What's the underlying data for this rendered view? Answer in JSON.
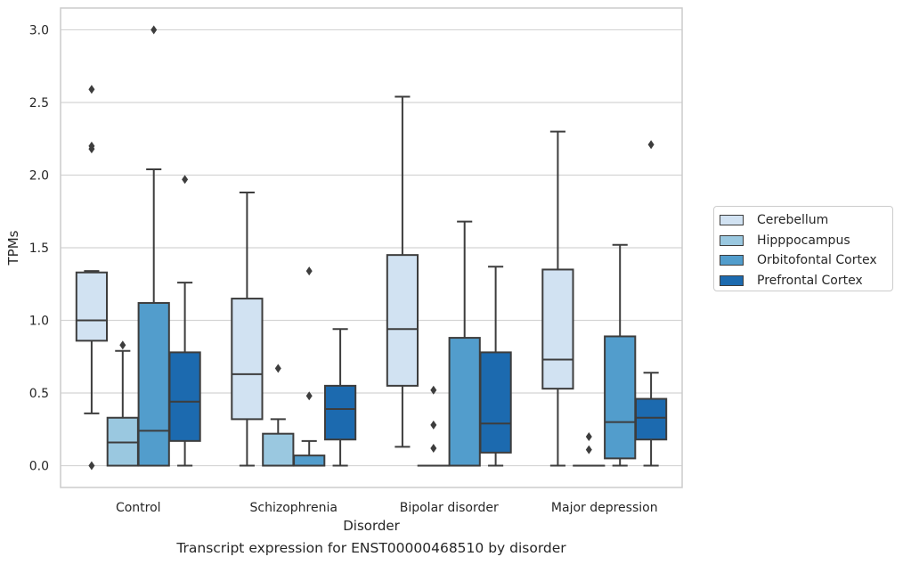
{
  "caption": "Transcript expression for ENST00000468510 by disorder",
  "chart_data": {
    "type": "box",
    "xlabel": "Disorder",
    "ylabel": "TPMs",
    "ylim": [
      -0.15,
      3.15
    ],
    "yticks": [
      0.0,
      0.5,
      1.0,
      1.5,
      2.0,
      2.5,
      3.0
    ],
    "ytick_labels": [
      "0.0",
      "0.5",
      "1.0",
      "1.5",
      "2.0",
      "2.5",
      "3.0"
    ],
    "grid": true,
    "legend_position": "right",
    "categories": [
      "Control",
      "Schizophrenia",
      "Bipolar disorder",
      "Major depression"
    ],
    "series": [
      {
        "name": "Cerebellum",
        "color": "#d1e2f2",
        "boxes": [
          {
            "q1": 0.86,
            "median": 1.0,
            "q3": 1.33,
            "whislo": 0.36,
            "whishi": 1.34,
            "fliers": [
              0.0,
              2.18,
              2.2,
              2.59
            ]
          },
          {
            "q1": 0.32,
            "median": 0.63,
            "q3": 1.15,
            "whislo": 0.0,
            "whishi": 1.88,
            "fliers": []
          },
          {
            "q1": 0.55,
            "median": 0.94,
            "q3": 1.45,
            "whislo": 0.13,
            "whishi": 2.54,
            "fliers": []
          },
          {
            "q1": 0.53,
            "median": 0.73,
            "q3": 1.35,
            "whislo": 0.0,
            "whishi": 2.3,
            "fliers": []
          }
        ]
      },
      {
        "name": "Hipppocampus",
        "color": "#9ac8e0",
        "boxes": [
          {
            "q1": 0.0,
            "median": 0.16,
            "q3": 0.33,
            "whislo": 0.0,
            "whishi": 0.79,
            "fliers": [
              0.83
            ]
          },
          {
            "q1": 0.0,
            "median": 0.0,
            "q3": 0.22,
            "whislo": 0.0,
            "whishi": 0.32,
            "fliers": [
              0.67
            ]
          },
          {
            "q1": 0.0,
            "median": 0.0,
            "q3": 0.0,
            "whislo": 0.0,
            "whishi": 0.0,
            "fliers": [
              0.12,
              0.28,
              0.52
            ]
          },
          {
            "q1": 0.0,
            "median": 0.0,
            "q3": 0.0,
            "whislo": 0.0,
            "whishi": 0.0,
            "fliers": [
              0.11,
              0.2
            ]
          }
        ]
      },
      {
        "name": "Orbitofontal Cortex",
        "color": "#529dcc",
        "boxes": [
          {
            "q1": 0.0,
            "median": 0.24,
            "q3": 1.12,
            "whislo": 0.0,
            "whishi": 2.04,
            "fliers": [
              3.0
            ]
          },
          {
            "q1": 0.0,
            "median": 0.0,
            "q3": 0.07,
            "whislo": 0.0,
            "whishi": 0.17,
            "fliers": [
              0.48,
              1.34
            ]
          },
          {
            "q1": 0.0,
            "median": 0.0,
            "q3": 0.88,
            "whislo": 0.0,
            "whishi": 1.68,
            "fliers": []
          },
          {
            "q1": 0.05,
            "median": 0.3,
            "q3": 0.89,
            "whislo": 0.0,
            "whishi": 1.52,
            "fliers": []
          }
        ]
      },
      {
        "name": "Prefrontal Cortex",
        "color": "#1c6aaf",
        "boxes": [
          {
            "q1": 0.17,
            "median": 0.44,
            "q3": 0.78,
            "whislo": 0.0,
            "whishi": 1.26,
            "fliers": [
              1.97
            ]
          },
          {
            "q1": 0.18,
            "median": 0.39,
            "q3": 0.55,
            "whislo": 0.0,
            "whishi": 0.94,
            "fliers": []
          },
          {
            "q1": 0.09,
            "median": 0.29,
            "q3": 0.78,
            "whislo": 0.0,
            "whishi": 1.37,
            "fliers": []
          },
          {
            "q1": 0.18,
            "median": 0.33,
            "q3": 0.46,
            "whislo": 0.0,
            "whishi": 0.64,
            "fliers": [
              2.21
            ]
          }
        ]
      }
    ]
  }
}
